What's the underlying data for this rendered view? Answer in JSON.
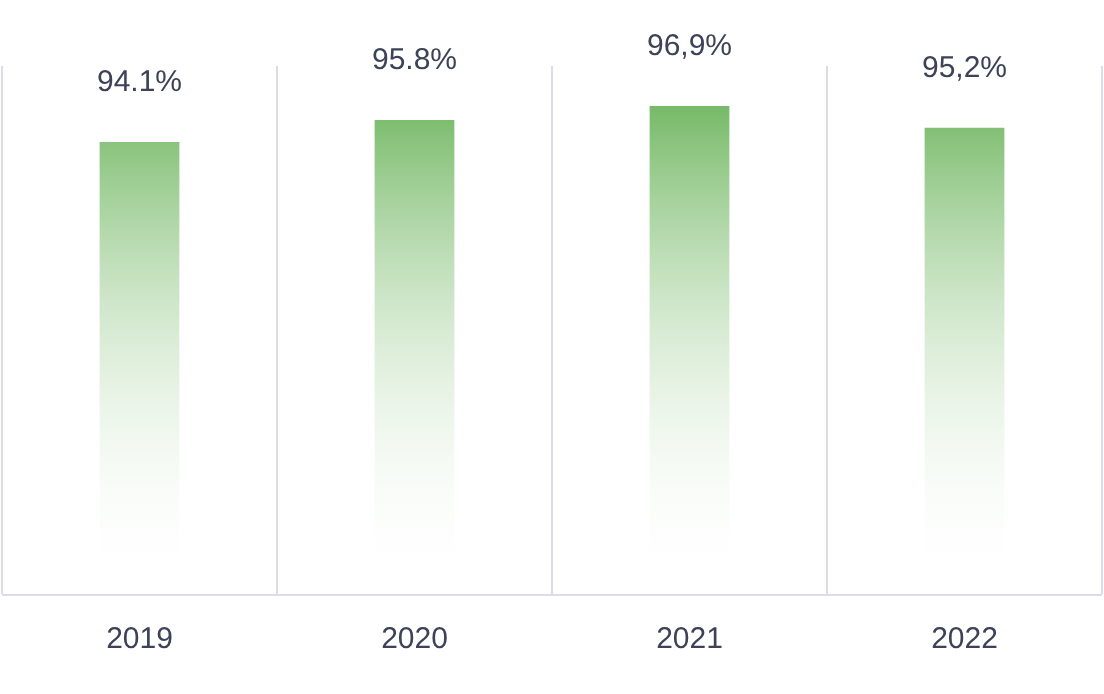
{
  "chart_data": {
    "type": "bar",
    "categories": [
      "2019",
      "2020",
      "2021",
      "2022"
    ],
    "values": [
      94.1,
      95.8,
      96.9,
      95.2
    ],
    "color": "#5fae4e",
    "value_labels": [
      "94.1%",
      "95.8%",
      "96,9%",
      "95,2%"
    ],
    "ylim": [
      59,
      100
    ],
    "tick_labels": "x",
    "grid": "x",
    "legend": false
  }
}
